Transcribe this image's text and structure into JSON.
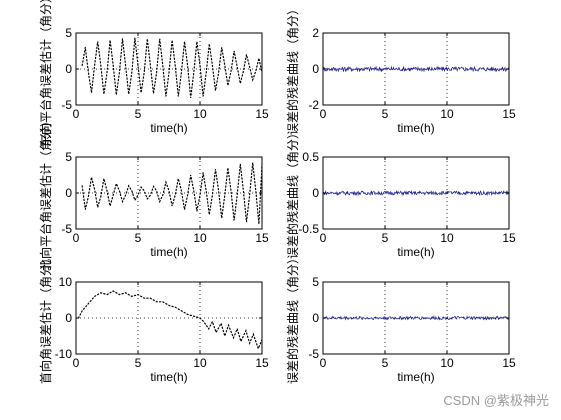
{
  "watermark": "CSDN @紫极神光",
  "chart_data": [
    {
      "type": "line",
      "ylabel": "东向平台角误差估计（角分）",
      "xlabel": "time(h)",
      "xlim": [
        0,
        15
      ],
      "ylim": [
        -5,
        5
      ],
      "xticks": [
        0,
        5,
        10,
        15
      ],
      "yticks": [
        -5,
        0,
        5
      ],
      "grid": true,
      "series": [
        {
          "style": "dotted",
          "color": "#000000",
          "x": [
            0.5,
            0.75,
            1.0,
            1.25,
            1.5,
            1.75,
            2.0,
            2.25,
            2.5,
            2.75,
            3.0,
            3.25,
            3.5,
            3.75,
            4.0,
            4.25,
            4.5,
            4.75,
            5.0,
            5.25,
            5.5,
            5.75,
            6.0,
            6.25,
            6.5,
            6.75,
            7.0,
            7.25,
            7.5,
            7.75,
            8.0,
            8.25,
            8.5,
            8.75,
            9.0,
            9.25,
            9.5,
            9.75,
            10.0,
            10.25,
            10.5,
            10.75,
            11.0,
            11.25,
            11.5,
            11.75,
            12.0,
            12.25,
            12.5,
            12.75,
            13.0,
            13.25,
            13.5,
            13.75,
            14.0,
            14.25,
            14.5,
            14.75,
            15.0
          ],
          "y": [
            0.5,
            3.0,
            -0.5,
            -3.3,
            0.5,
            3.8,
            0.5,
            -3.5,
            -0.5,
            4.0,
            0.5,
            -3.6,
            -0.5,
            4.2,
            0.5,
            -3.5,
            -0.5,
            4.3,
            0.5,
            -3.3,
            -0.5,
            4.2,
            0.5,
            -3.4,
            -0.5,
            4.2,
            0.5,
            -3.8,
            -0.5,
            4.0,
            0.5,
            -3.8,
            -0.5,
            3.8,
            0.5,
            -4.0,
            -0.5,
            3.8,
            0.5,
            -3.8,
            -0.5,
            3.5,
            0.5,
            -3.0,
            -0.5,
            3.0,
            0.5,
            -2.3,
            -0.3,
            2.5,
            0.3,
            -2.0,
            -0.3,
            2.0,
            0.3,
            -1.5,
            -0.3,
            1.5,
            -0.5
          ]
        }
      ]
    },
    {
      "type": "line",
      "ylabel": "误差的残差曲线（角分）",
      "xlabel": "time(h)",
      "xlim": [
        0,
        15
      ],
      "ylim": [
        -2,
        2
      ],
      "xticks": [
        0,
        5,
        10,
        15
      ],
      "yticks": [
        -2,
        0,
        2
      ],
      "grid": true,
      "series": [
        {
          "style": "noise",
          "color": "#1a1a8c",
          "mean": 0,
          "amplitude": 0.07
        }
      ]
    },
    {
      "type": "line",
      "ylabel": "北向平台角误差估计（角分）",
      "xlabel": "time(h)",
      "xlim": [
        0,
        15
      ],
      "ylim": [
        -5,
        5
      ],
      "xticks": [
        0,
        5,
        10,
        15
      ],
      "yticks": [
        -5,
        0,
        5
      ],
      "grid": true,
      "series": [
        {
          "style": "dotted",
          "color": "#000000",
          "x": [
            0.5,
            0.75,
            1.0,
            1.25,
            1.5,
            1.75,
            2.0,
            2.25,
            2.5,
            2.75,
            3.0,
            3.25,
            3.5,
            3.75,
            4.0,
            4.25,
            4.5,
            4.75,
            5.0,
            5.25,
            5.5,
            5.75,
            6.0,
            6.25,
            6.5,
            6.75,
            7.0,
            7.25,
            7.5,
            7.75,
            8.0,
            8.25,
            8.5,
            8.75,
            9.0,
            9.25,
            9.5,
            9.75,
            10.0,
            10.25,
            10.5,
            10.75,
            11.0,
            11.25,
            11.5,
            11.75,
            12.0,
            12.25,
            12.5,
            12.75,
            13.0,
            13.25,
            13.5,
            13.75,
            14.0,
            14.25,
            14.5,
            14.75,
            15.0
          ],
          "y": [
            1.0,
            -2.3,
            -0.5,
            2.2,
            0.5,
            -2.0,
            -0.5,
            2.0,
            0.3,
            -1.8,
            -0.3,
            1.3,
            0.3,
            -1.2,
            -0.3,
            1.0,
            0.3,
            -1.0,
            -0.3,
            0.8,
            0.3,
            -0.8,
            -0.3,
            0.9,
            0.3,
            -1.2,
            -0.3,
            1.5,
            0.3,
            -1.8,
            -0.3,
            2.0,
            0.3,
            -2.3,
            -0.3,
            2.5,
            0.3,
            -2.5,
            -0.3,
            2.8,
            0.3,
            -3.0,
            -0.3,
            3.3,
            0.3,
            -3.5,
            -0.3,
            3.5,
            0.3,
            -3.8,
            -0.3,
            4.0,
            0.3,
            -4.0,
            -0.3,
            4.2,
            0.3,
            -4.3,
            4.0
          ]
        }
      ]
    },
    {
      "type": "line",
      "ylabel": "误差的残差曲线（角分）",
      "xlabel": "time(h)",
      "xlim": [
        0,
        15
      ],
      "ylim": [
        -0.5,
        0.5
      ],
      "xticks": [
        0,
        5,
        10,
        15
      ],
      "yticks": [
        -0.5,
        0,
        0.5
      ],
      "grid": true,
      "series": [
        {
          "style": "noise",
          "color": "#1a1a8c",
          "mean": 0,
          "amplitude": 0.06
        }
      ]
    },
    {
      "type": "line",
      "ylabel": "首向角误差估计（角分）",
      "xlabel": "time(h)",
      "xlim": [
        0,
        15
      ],
      "ylim": [
        -10,
        10
      ],
      "xticks": [
        0,
        5,
        10,
        15
      ],
      "yticks": [
        -10,
        0,
        10
      ],
      "grid": true,
      "series": [
        {
          "style": "dotted",
          "color": "#000000",
          "x": [
            0.2,
            0.5,
            1.0,
            1.5,
            2.0,
            2.5,
            3.0,
            3.5,
            4.0,
            4.5,
            5.0,
            5.5,
            6.0,
            6.5,
            7.0,
            7.5,
            8.0,
            8.5,
            9.0,
            9.5,
            10.0,
            10.3,
            10.7,
            11.0,
            11.3,
            11.7,
            12.0,
            12.3,
            12.7,
            13.0,
            13.3,
            13.7,
            14.0,
            14.3,
            14.7,
            15.0
          ],
          "y": [
            0,
            2,
            4,
            6,
            7,
            6.5,
            7.5,
            6.5,
            7.0,
            6.0,
            6.5,
            5.5,
            5.5,
            4.5,
            4.5,
            3.5,
            3.0,
            2.0,
            1.0,
            0.5,
            0,
            -1.0,
            -3.0,
            -1.0,
            -4.0,
            -1.5,
            -5.0,
            -2.0,
            -5.5,
            -3.0,
            -6.5,
            -3.5,
            -7.0,
            -4.5,
            -8.5,
            -6.0
          ]
        }
      ]
    },
    {
      "type": "line",
      "ylabel": "误差的残差曲线（角分）",
      "xlabel": "time(h)",
      "xlim": [
        0,
        15
      ],
      "ylim": [
        -5,
        5
      ],
      "xticks": [
        0,
        5,
        10,
        15
      ],
      "yticks": [
        -5,
        0,
        5
      ],
      "grid": true,
      "series": [
        {
          "style": "noise",
          "color": "#1a1a8c",
          "mean": 0,
          "amplitude": 0.05
        }
      ]
    }
  ]
}
